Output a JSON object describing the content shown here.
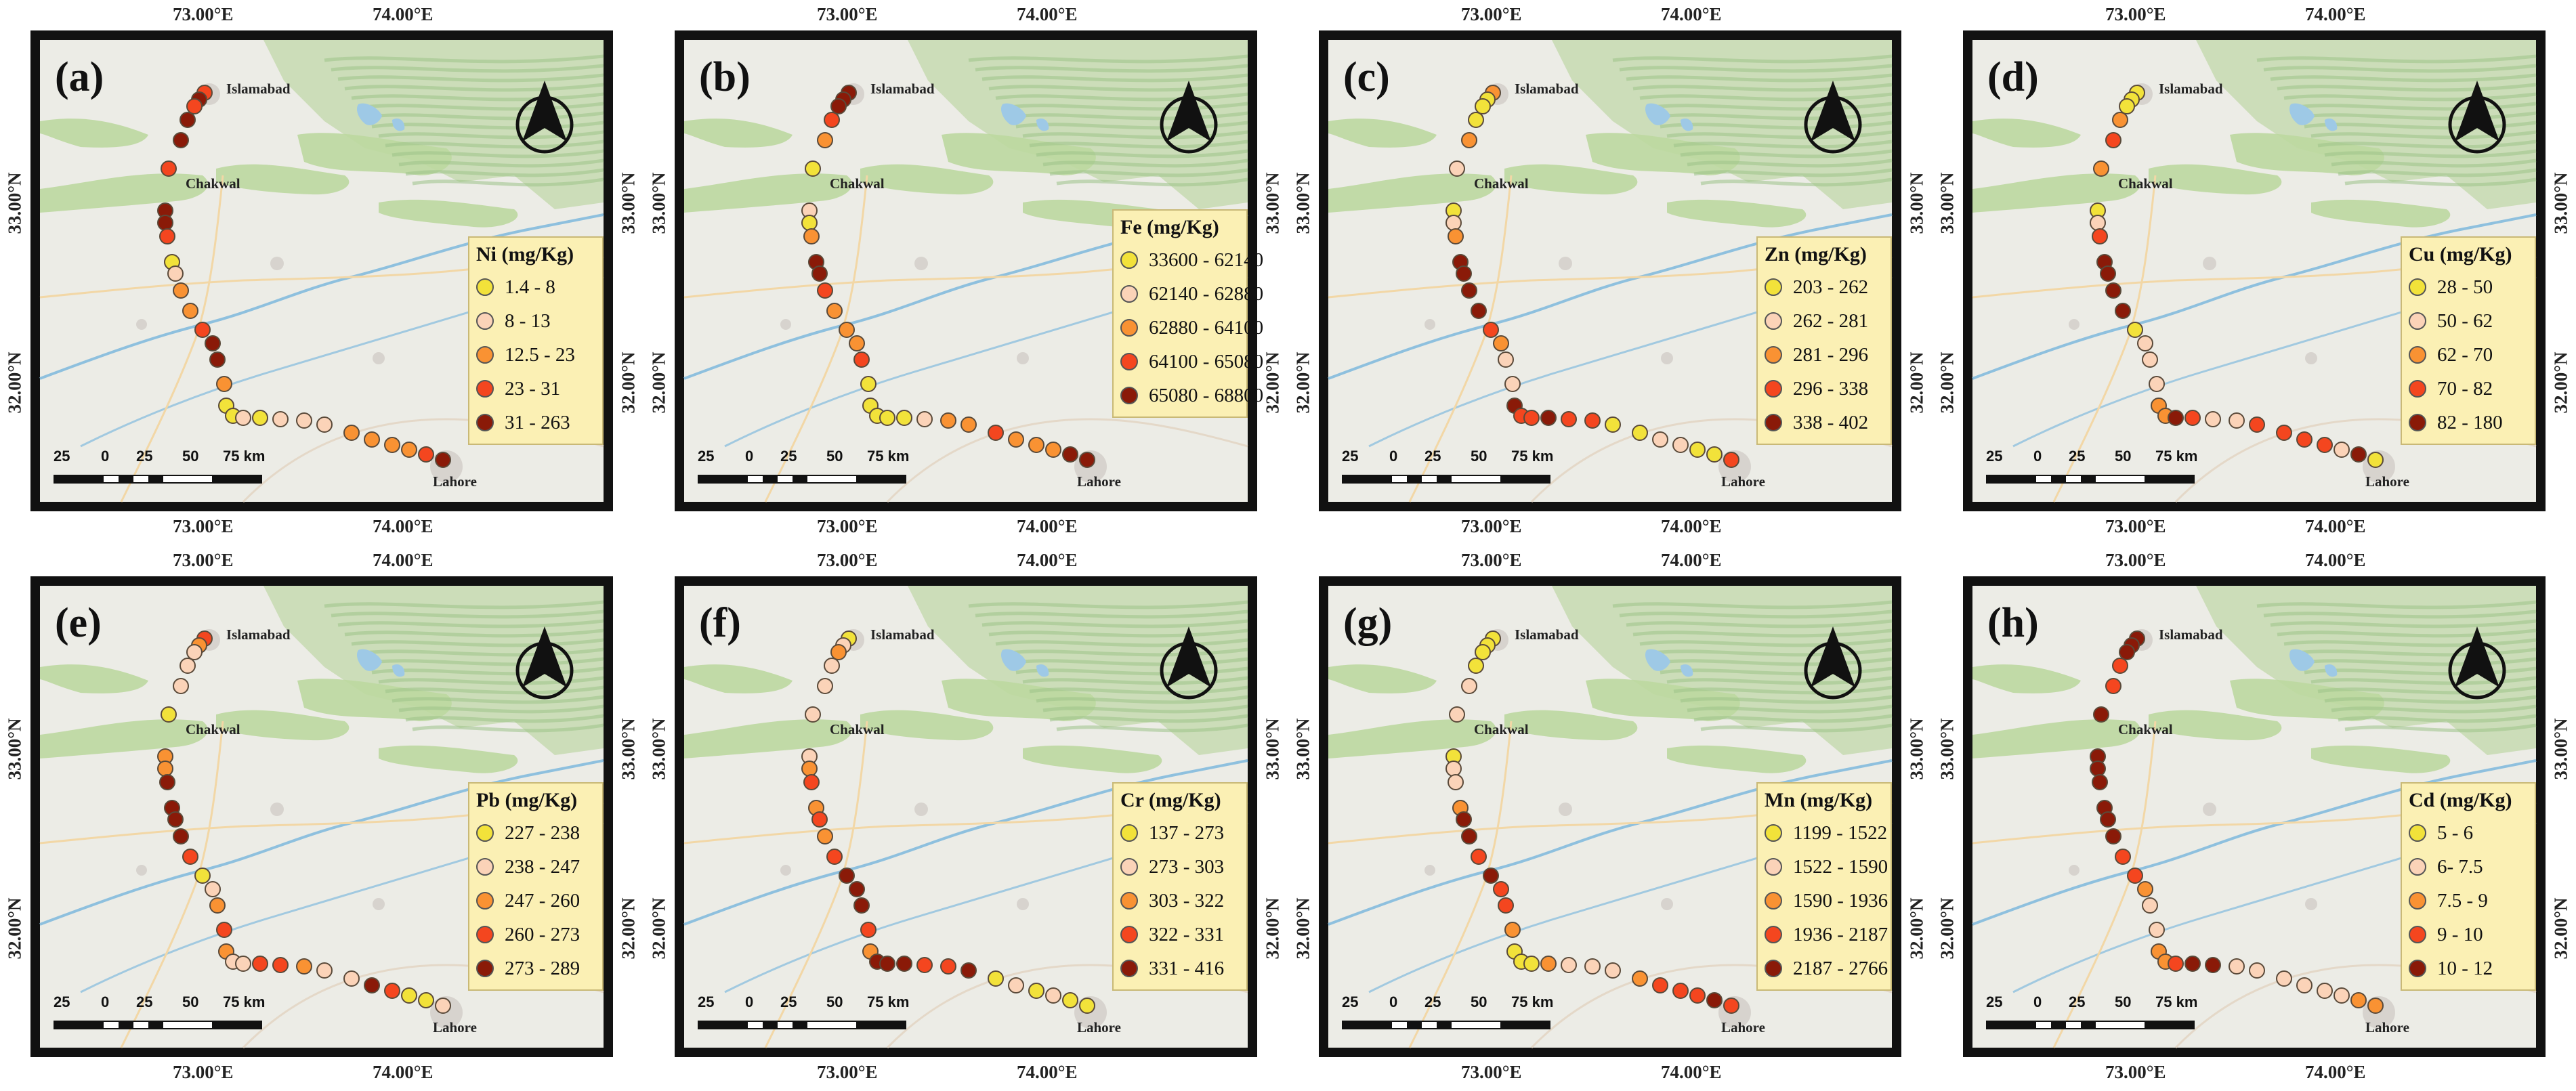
{
  "axis_labels": {
    "lon_left": "73.00°E",
    "lon_right": "74.00°E",
    "lat_top": "33.00°N",
    "lat_bottom": "32.00°N"
  },
  "cities": {
    "islamabad": "Islamabad",
    "chakwal": "Chakwal",
    "lahore": "Lahore"
  },
  "scale": {
    "labels": [
      "25",
      "0",
      "25",
      "50",
      "75 km"
    ]
  },
  "legend_colors": [
    "#f2e23a",
    "#fbd3b8",
    "#f99233",
    "#f4461f",
    "#8a1a08"
  ],
  "panels": [
    {
      "letter": "(a)",
      "title": "Ni (mg/Kg)",
      "classes": [
        "1.4 - 8",
        "8 - 13",
        "12.5 - 23",
        "23 - 31",
        "31 - 263"
      ],
      "site_classes": [
        3,
        4,
        3,
        4,
        4,
        3,
        4,
        4,
        3,
        0,
        1,
        2,
        2,
        3,
        4,
        4,
        2,
        0,
        0,
        1,
        0,
        1,
        1,
        1,
        2,
        2,
        2,
        2,
        3,
        4
      ]
    },
    {
      "letter": "(b)",
      "title": "Fe (mg/Kg)",
      "classes": [
        "33600 - 62140",
        "62140 - 62880",
        "62880 - 64100",
        "64100 - 65080",
        "65080 - 68800"
      ],
      "site_classes": [
        4,
        4,
        4,
        3,
        2,
        0,
        1,
        0,
        2,
        4,
        4,
        3,
        2,
        2,
        2,
        3,
        0,
        0,
        0,
        0,
        0,
        1,
        2,
        2,
        3,
        2,
        2,
        2,
        4,
        4
      ]
    },
    {
      "letter": "(c)",
      "title": "Zn (mg/Kg)",
      "classes": [
        "203 - 262",
        "262 - 281",
        "281 - 296",
        "296 - 338",
        "338 - 402"
      ],
      "site_classes": [
        2,
        0,
        0,
        0,
        2,
        1,
        0,
        1,
        2,
        4,
        4,
        4,
        4,
        3,
        2,
        1,
        1,
        4,
        3,
        3,
        4,
        3,
        3,
        0,
        0,
        1,
        1,
        0,
        0,
        3
      ]
    },
    {
      "letter": "(d)",
      "title": "Cu (mg/Kg)",
      "classes": [
        "28 - 50",
        "50 - 62",
        "62 - 70",
        "70 - 82",
        "82 - 180"
      ],
      "site_classes": [
        0,
        0,
        0,
        2,
        3,
        2,
        0,
        1,
        3,
        4,
        4,
        4,
        4,
        0,
        1,
        1,
        1,
        2,
        2,
        4,
        3,
        1,
        1,
        3,
        3,
        3,
        3,
        1,
        4,
        0
      ]
    },
    {
      "letter": "(e)",
      "title": "Pb (mg/Kg)",
      "classes": [
        "227 - 238",
        "238 - 247",
        "247 - 260",
        "260 - 273",
        "273 - 289"
      ],
      "site_classes": [
        3,
        2,
        1,
        1,
        1,
        0,
        2,
        2,
        4,
        4,
        4,
        4,
        3,
        0,
        1,
        2,
        3,
        2,
        1,
        1,
        3,
        3,
        2,
        1,
        1,
        4,
        3,
        0,
        0,
        1
      ]
    },
    {
      "letter": "(f)",
      "title": "Cr (mg/Kg)",
      "classes": [
        "137 - 273",
        "273 - 303",
        "303 - 322",
        "322 - 331",
        "331 - 416"
      ],
      "site_classes": [
        0,
        1,
        2,
        1,
        1,
        1,
        1,
        2,
        3,
        2,
        3,
        2,
        3,
        4,
        4,
        4,
        3,
        2,
        4,
        4,
        4,
        3,
        3,
        4,
        0,
        1,
        0,
        1,
        0,
        0
      ]
    },
    {
      "letter": "(g)",
      "title": "Mn (mg/Kg)",
      "classes": [
        "1199 - 1522",
        "1522 - 1590",
        "1590 - 1936",
        "1936 - 2187",
        "2187 - 2766"
      ],
      "site_classes": [
        0,
        0,
        0,
        0,
        1,
        1,
        0,
        1,
        1,
        2,
        4,
        4,
        3,
        4,
        3,
        3,
        2,
        0,
        0,
        0,
        2,
        1,
        1,
        1,
        2,
        3,
        3,
        3,
        4,
        3
      ]
    },
    {
      "letter": "(h)",
      "title": "Cd (mg/Kg)",
      "classes": [
        "5 - 6",
        "6- 7.5",
        "7.5 - 9",
        "9 - 10",
        "10 - 12"
      ],
      "site_classes": [
        4,
        4,
        4,
        3,
        3,
        4,
        4,
        4,
        4,
        4,
        4,
        4,
        3,
        3,
        2,
        1,
        1,
        2,
        2,
        3,
        4,
        4,
        1,
        1,
        1,
        1,
        1,
        1,
        2,
        2
      ]
    }
  ]
}
